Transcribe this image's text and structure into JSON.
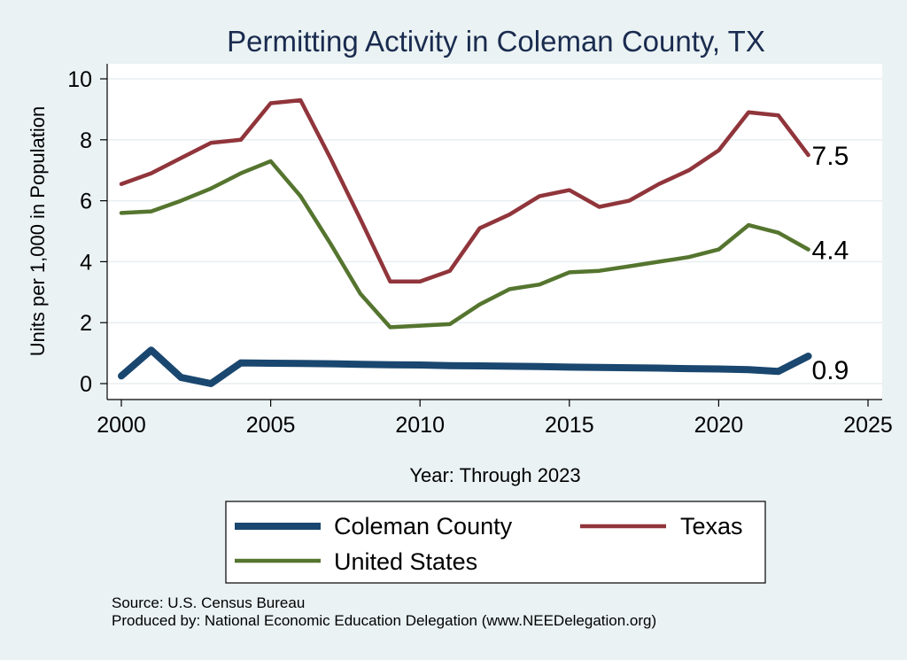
{
  "chart_data": {
    "type": "line",
    "title": "Permitting Activity in Coleman County, TX",
    "xlabel": "Year: Through 2023",
    "ylabel": "Units per 1,000 in Population",
    "xlim": [
      2000,
      2025
    ],
    "ylim": [
      0,
      10
    ],
    "xticks": [
      2000,
      2005,
      2010,
      2015,
      2020,
      2025
    ],
    "yticks": [
      0,
      2,
      4,
      6,
      8,
      10
    ],
    "grid": true,
    "legend_position": "bottom",
    "x": [
      2000,
      2001,
      2002,
      2003,
      2004,
      2005,
      2006,
      2007,
      2008,
      2009,
      2010,
      2011,
      2012,
      2013,
      2014,
      2015,
      2016,
      2017,
      2018,
      2019,
      2020,
      2021,
      2022,
      2023
    ],
    "series": [
      {
        "name": "Coleman County",
        "color": "#1a476f",
        "width": 8,
        "values": [
          0.25,
          1.1,
          0.2,
          0.0,
          0.68,
          0.67,
          0.66,
          0.65,
          0.63,
          0.62,
          0.61,
          0.59,
          0.58,
          0.57,
          0.56,
          0.54,
          0.53,
          0.52,
          0.51,
          0.49,
          0.48,
          0.46,
          0.4,
          0.9
        ]
      },
      {
        "name": "Texas",
        "color": "#90353b",
        "width": 4.5,
        "values": [
          6.55,
          6.9,
          7.4,
          7.9,
          8.0,
          9.2,
          9.3,
          7.4,
          5.4,
          3.35,
          3.35,
          3.7,
          5.1,
          5.55,
          6.15,
          6.35,
          5.8,
          6.0,
          6.55,
          7.0,
          7.65,
          8.9,
          8.8,
          7.5
        ]
      },
      {
        "name": "United States",
        "color": "#55752f",
        "width": 4.5,
        "values": [
          5.6,
          5.65,
          6.0,
          6.4,
          6.9,
          7.3,
          6.15,
          4.6,
          2.95,
          1.85,
          1.9,
          1.95,
          2.6,
          3.1,
          3.25,
          3.65,
          3.7,
          3.85,
          4.0,
          4.15,
          4.4,
          5.2,
          4.95,
          4.4
        ]
      }
    ],
    "end_labels": [
      "0.9",
      "7.5",
      "4.4"
    ]
  },
  "footer": {
    "source": "Source: U.S. Census Bureau",
    "produced_by": "Produced by: National Economic Education Delegation (www.NEEDelegation.org)"
  }
}
